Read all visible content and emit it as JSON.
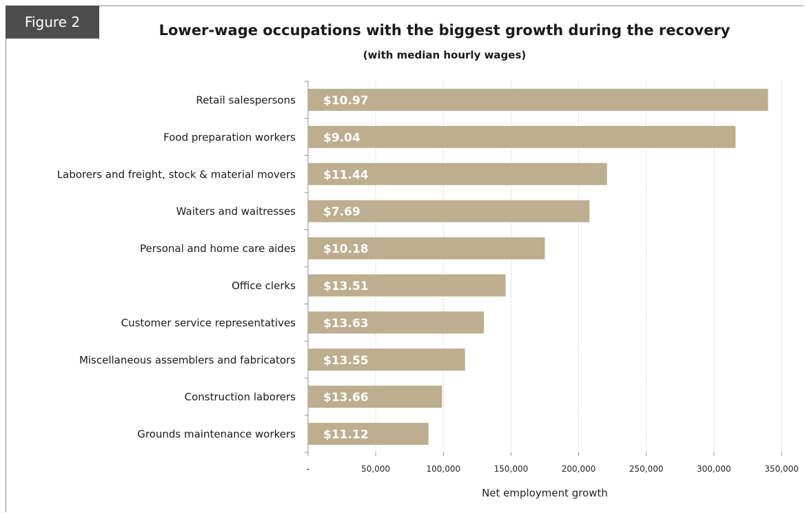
{
  "figure_tag": "Figure 2",
  "chart_data": {
    "type": "bar",
    "orientation": "horizontal",
    "title": "Lower-wage occupations with the biggest growth during the recovery",
    "subtitle": "(with median hourly wages)",
    "xlabel": "Net employment growth",
    "ylabel": "",
    "xlim": [
      0,
      350000
    ],
    "x_ticks": [
      0,
      50000,
      100000,
      150000,
      200000,
      250000,
      300000,
      350000
    ],
    "x_tick_labels": [
      "-",
      "50,000",
      "100,000",
      "150,000",
      "200,000",
      "250,000",
      "300,000",
      "350,000"
    ],
    "grid": "vertical dotted",
    "bar_color": "#bcae8e",
    "label_color": "#ffffff",
    "categories": [
      "Retail salespersons",
      "Food preparation workers",
      "Laborers and freight, stock & material movers",
      "Waiters and waitresses",
      "Personal and home care aides",
      "Office clerks",
      "Customer service representatives",
      "Miscellaneous assemblers and fabricators",
      "Construction laborers",
      "Grounds maintenance workers"
    ],
    "values": [
      340000,
      316000,
      221000,
      208000,
      175000,
      146000,
      130000,
      116000,
      99000,
      89000
    ],
    "data_labels": [
      "$10.97",
      "$9.04",
      "$11.44",
      "$7.69",
      "$10.18",
      "$13.51",
      "$13.63",
      "$13.55",
      "$13.66",
      "$11.12"
    ]
  }
}
